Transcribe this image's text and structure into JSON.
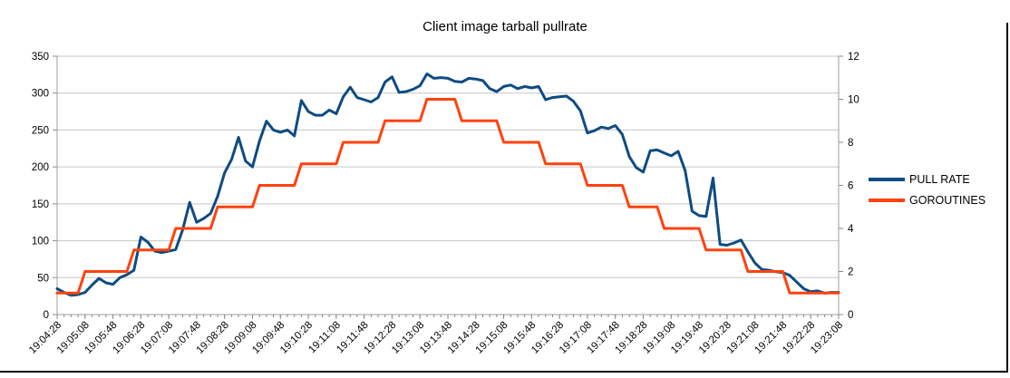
{
  "chart_data": {
    "type": "line",
    "title": "Client image tarball pullrate",
    "xlabel": "",
    "ylabel_left": "",
    "ylabel_right": "",
    "grid": "horizontal",
    "legend_position": "right",
    "sample_interval_seconds": 10,
    "x_tick_labels": [
      "19:04:28",
      "19:05:08",
      "19:05:48",
      "19:06:28",
      "19:07:08",
      "19:07:48",
      "19:08:28",
      "19:09:08",
      "19:09:48",
      "19:10:28",
      "19:11:08",
      "19:11:48",
      "19:12:28",
      "19:13:08",
      "19:13:48",
      "19:14:28",
      "19:15:08",
      "19:15:48",
      "19:16:28",
      "19:17:08",
      "19:17:48",
      "19:18:28",
      "19:19:08",
      "19:19:48",
      "19:20:28",
      "19:21:08",
      "19:21:48",
      "19:22:28",
      "19:23:08"
    ],
    "x_label_interval_seconds": 40,
    "x_minor_ticks_per_label": 4,
    "y_left": {
      "min": 0,
      "max": 350,
      "ticks": [
        0,
        50,
        100,
        150,
        200,
        250,
        300,
        350
      ]
    },
    "y_right": {
      "min": 0,
      "max": 12,
      "ticks": [
        0,
        2,
        4,
        6,
        8,
        10,
        12
      ]
    },
    "colors": {
      "grid": "#c6c6c6",
      "axis": "#9c9c9c",
      "tick": "#8a8a8a",
      "label": "#000000"
    },
    "series": [
      {
        "name": "PULL RATE",
        "axis": "left",
        "color": "#0e4b82",
        "values": [
          35,
          30,
          26,
          27,
          30,
          40,
          49,
          43,
          41,
          50,
          54,
          60,
          105,
          98,
          86,
          84,
          86,
          88,
          115,
          152,
          125,
          130,
          137,
          160,
          192,
          210,
          240,
          208,
          200,
          235,
          262,
          250,
          247,
          250,
          242,
          290,
          275,
          270,
          270,
          277,
          272,
          295,
          308,
          294,
          291,
          288,
          294,
          315,
          322,
          301,
          302,
          305,
          310,
          326,
          320,
          321,
          320,
          316,
          315,
          320,
          319,
          317,
          306,
          302,
          309,
          311,
          306,
          309,
          307,
          309,
          291,
          294,
          295,
          296,
          289,
          276,
          246,
          249,
          254,
          252,
          256,
          244,
          214,
          199,
          193,
          222,
          223,
          219,
          215,
          221,
          195,
          140,
          134,
          133,
          185,
          95,
          94,
          97,
          101,
          85,
          70,
          61,
          60,
          58,
          57,
          53,
          44,
          35,
          31,
          32,
          29,
          30,
          30
        ]
      },
      {
        "name": "GOROUTINES",
        "axis": "right",
        "color": "#ff420e",
        "values": [
          1,
          1,
          1,
          1,
          2,
          2,
          2,
          2,
          2,
          2,
          2,
          3,
          3,
          3,
          3,
          3,
          3,
          4,
          4,
          4,
          4,
          4,
          4,
          5,
          5,
          5,
          5,
          5,
          5,
          6,
          6,
          6,
          6,
          6,
          6,
          7,
          7,
          7,
          7,
          7,
          7,
          8,
          8,
          8,
          8,
          8,
          8,
          9,
          9,
          9,
          9,
          9,
          9,
          10,
          10,
          10,
          10,
          10,
          9,
          9,
          9,
          9,
          9,
          9,
          8,
          8,
          8,
          8,
          8,
          8,
          7,
          7,
          7,
          7,
          7,
          7,
          6,
          6,
          6,
          6,
          6,
          6,
          5,
          5,
          5,
          5,
          5,
          4,
          4,
          4,
          4,
          4,
          4,
          3,
          3,
          3,
          3,
          3,
          3,
          2,
          2,
          2,
          2,
          2,
          2,
          1,
          1,
          1,
          1,
          1,
          1,
          1,
          1
        ]
      }
    ]
  }
}
